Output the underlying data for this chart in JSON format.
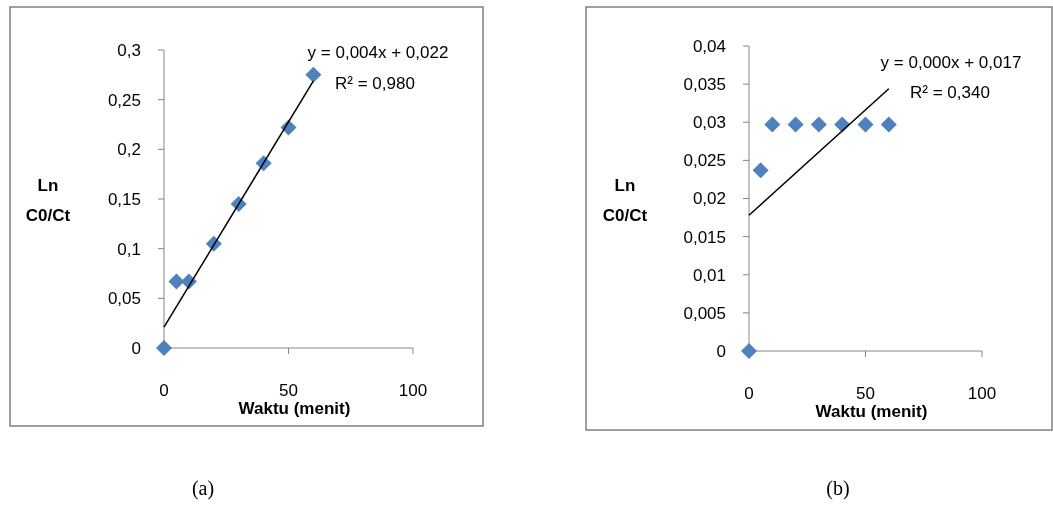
{
  "chart_data": [
    {
      "type": "scatter",
      "xlabel": "Waktu (menit)",
      "ylabel": "Ln C0/Ct",
      "xlim": [
        0,
        100
      ],
      "xticks": [
        0,
        50,
        100
      ],
      "ylim": [
        0,
        0.3
      ],
      "yticks": [
        0,
        {
          "value": 0.05,
          "label": "0,05"
        },
        {
          "value": 0.1,
          "label": "0,1"
        },
        {
          "value": 0.15,
          "label": "0,15"
        },
        {
          "value": 0.2,
          "label": "0,2"
        },
        {
          "value": 0.25,
          "label": "0,25"
        },
        {
          "value": 0.3,
          "label": "0,3"
        }
      ],
      "series": [
        {
          "marker": "diamond",
          "color": "#4f81bd",
          "x": [
            0,
            5,
            10,
            20,
            30,
            40,
            50,
            60
          ],
          "values": [
            0,
            0.067,
            0.067,
            0.105,
            0.145,
            0.186,
            0.222,
            0.275
          ]
        },
        {
          "type": "line",
          "color": "#000000",
          "x": [
            0,
            60
          ],
          "values": [
            0.021,
            0.269
          ]
        }
      ],
      "annotations": [
        "y = 0,004x + 0,022",
        "R² = 0,980",
        "(a)"
      ]
    },
    {
      "type": "scatter",
      "xlabel": "Waktu (menit)",
      "ylabel": "Ln C0/Ct",
      "xlim": [
        0,
        100
      ],
      "xticks": [
        0,
        50,
        100
      ],
      "ylim": [
        0,
        0.04
      ],
      "yticks": [
        0,
        {
          "value": 0.005,
          "label": "0,005"
        },
        {
          "value": 0.01,
          "label": "0,01"
        },
        {
          "value": 0.015,
          "label": "0,015"
        },
        {
          "value": 0.02,
          "label": "0,02"
        },
        {
          "value": 0.025,
          "label": "0,025"
        },
        {
          "value": 0.03,
          "label": "0,03"
        },
        {
          "value": 0.035,
          "label": "0,035"
        },
        {
          "value": 0.04,
          "label": "0,04"
        }
      ],
      "series": [
        {
          "marker": "diamond",
          "color": "#4f81bd",
          "x": [
            0,
            5,
            10,
            20,
            30,
            40,
            50,
            60
          ],
          "values": [
            0,
            0.0237,
            0.0297,
            0.0297,
            0.0297,
            0.0297,
            0.0297,
            0.0297
          ]
        },
        {
          "type": "line",
          "color": "#000000",
          "x": [
            0,
            60
          ],
          "values": [
            0.0178,
            0.0344
          ]
        }
      ],
      "annotations": [
        "y = 0,000x + 0,017",
        "R² = 0,340",
        "(b)"
      ]
    }
  ]
}
